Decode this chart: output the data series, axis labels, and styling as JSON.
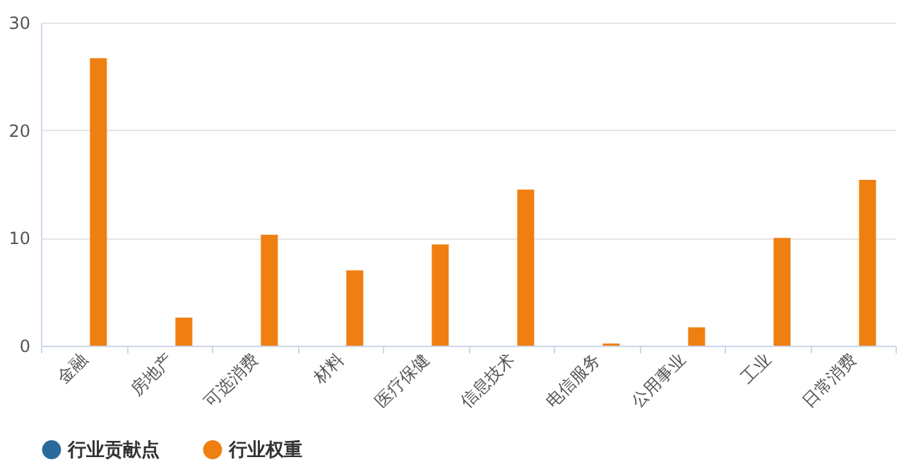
{
  "chart_data": {
    "type": "bar",
    "categories": [
      "金融",
      "房地产",
      "可选消费",
      "材料",
      "医疗保健",
      "信息技术",
      "电信服务",
      "公用事业",
      "工业",
      "日常消费"
    ],
    "series": [
      {
        "name": "行业贡献点",
        "color": "#2a6a9a",
        "values": [
          0,
          0,
          0,
          0,
          0,
          0,
          0,
          0,
          0,
          0
        ]
      },
      {
        "name": "行业权重",
        "color": "#ef7f11",
        "values": [
          26.7,
          2.6,
          10.3,
          7.0,
          9.4,
          14.5,
          0.2,
          1.7,
          10.0,
          15.4
        ]
      }
    ],
    "ylim": [
      0,
      30
    ],
    "yticks": [
      0,
      10,
      20,
      30
    ],
    "grid": "y",
    "legend": "bottom"
  }
}
